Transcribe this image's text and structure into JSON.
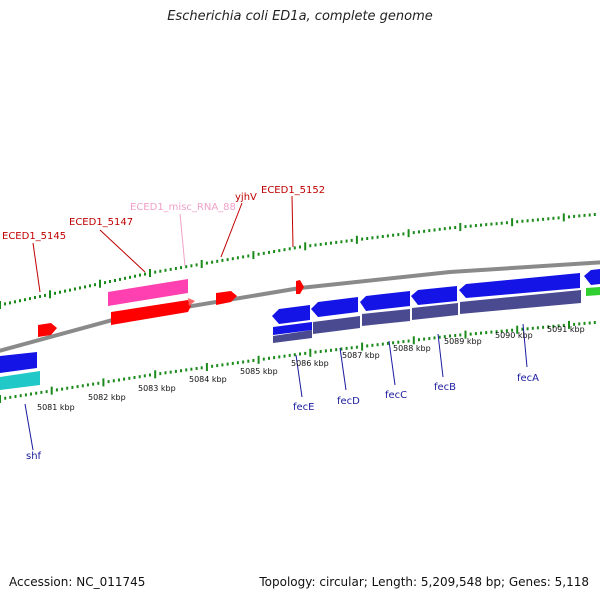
{
  "title": "Escherichia coli ED1a, complete genome",
  "footer": {
    "accession": "Accession: NC_011745",
    "summary": "Topology: circular; Length: 5,209,548 bp; Genes: 5,118"
  },
  "colors": {
    "backbone": "#8a8a8a",
    "tick": "#1a8a1a",
    "gene_blue": "#1414e6",
    "cds_purple": "#4a4a90",
    "red_gene": "#ff0000",
    "pink_rna": "#ff40b0",
    "cyan": "#20c8c8",
    "green": "#30d030"
  },
  "scale_labels": [
    "5081 kbp",
    "5082 kbp",
    "5083 kbp",
    "5084 kbp",
    "5085 kbp",
    "5086 kbp",
    "5087 kbp",
    "5088 kbp",
    "5089 kbp",
    "5090 kbp",
    "5091 kbp"
  ],
  "top_labels": [
    {
      "text": "ECED1_5145",
      "style": "red"
    },
    {
      "text": "ECED1_5147",
      "style": "red"
    },
    {
      "text": "ECED1_misc_RNA_88",
      "style": "pink"
    },
    {
      "text": "yjhV",
      "style": "red"
    },
    {
      "text": "ECED1_5152",
      "style": "red"
    }
  ],
  "bottom_labels": [
    "shf",
    "fecE",
    "fecD",
    "fecC",
    "fecB",
    "fecA"
  ]
}
